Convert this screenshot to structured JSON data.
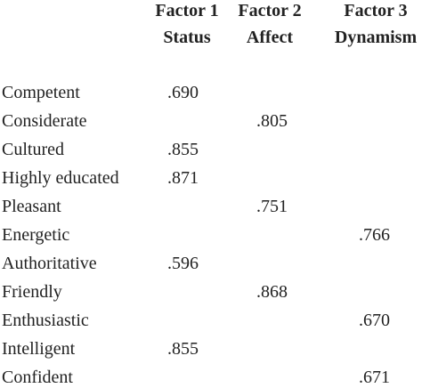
{
  "table": {
    "columns": [
      {
        "line1": "Factor 1",
        "line2": "Status"
      },
      {
        "line1": "Factor 2",
        "line2": "Affect"
      },
      {
        "line1": "Factor 3",
        "line2": "Dynamism"
      }
    ],
    "rows": [
      {
        "label": "Competent",
        "values": [
          ".690",
          null,
          null
        ]
      },
      {
        "label": "Considerate",
        "values": [
          null,
          ".805",
          null
        ]
      },
      {
        "label": "Cultured",
        "values": [
          ".855",
          null,
          null
        ]
      },
      {
        "label": "Highly educated",
        "values": [
          ".871",
          null,
          null
        ]
      },
      {
        "label": "Pleasant",
        "values": [
          null,
          ".751",
          null
        ]
      },
      {
        "label": "Energetic",
        "values": [
          null,
          null,
          ".766"
        ]
      },
      {
        "label": "Authoritative",
        "values": [
          ".596",
          null,
          null
        ]
      },
      {
        "label": "Friendly",
        "values": [
          null,
          ".868",
          null
        ]
      },
      {
        "label": "Enthusiastic",
        "values": [
          null,
          null,
          ".670"
        ]
      },
      {
        "label": "Intelligent",
        "values": [
          ".855",
          null,
          null
        ]
      },
      {
        "label": "Confident",
        "values": [
          null,
          null,
          ".671"
        ]
      }
    ]
  }
}
